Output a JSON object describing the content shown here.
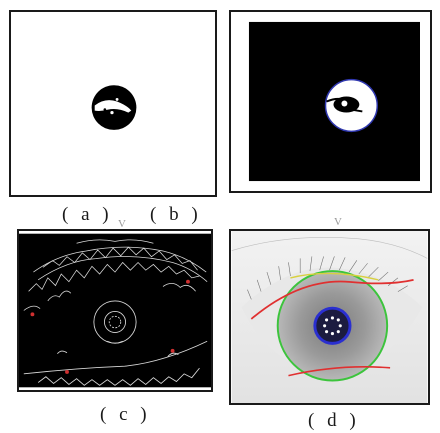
{
  "captions": {
    "a": "( a )",
    "b": "( b )",
    "c": "( c )",
    "d": "( d )"
  },
  "stray_marks": [
    "V",
    "V"
  ],
  "colors": {
    "frame": "#1a1a1a",
    "background_black": "#000000",
    "iris_boundary": "#3cc43c",
    "pupil_boundary": "#2a2fd0",
    "eyelid_curve": "#e03030",
    "edge_map_lines": "#d8d8d8"
  }
}
